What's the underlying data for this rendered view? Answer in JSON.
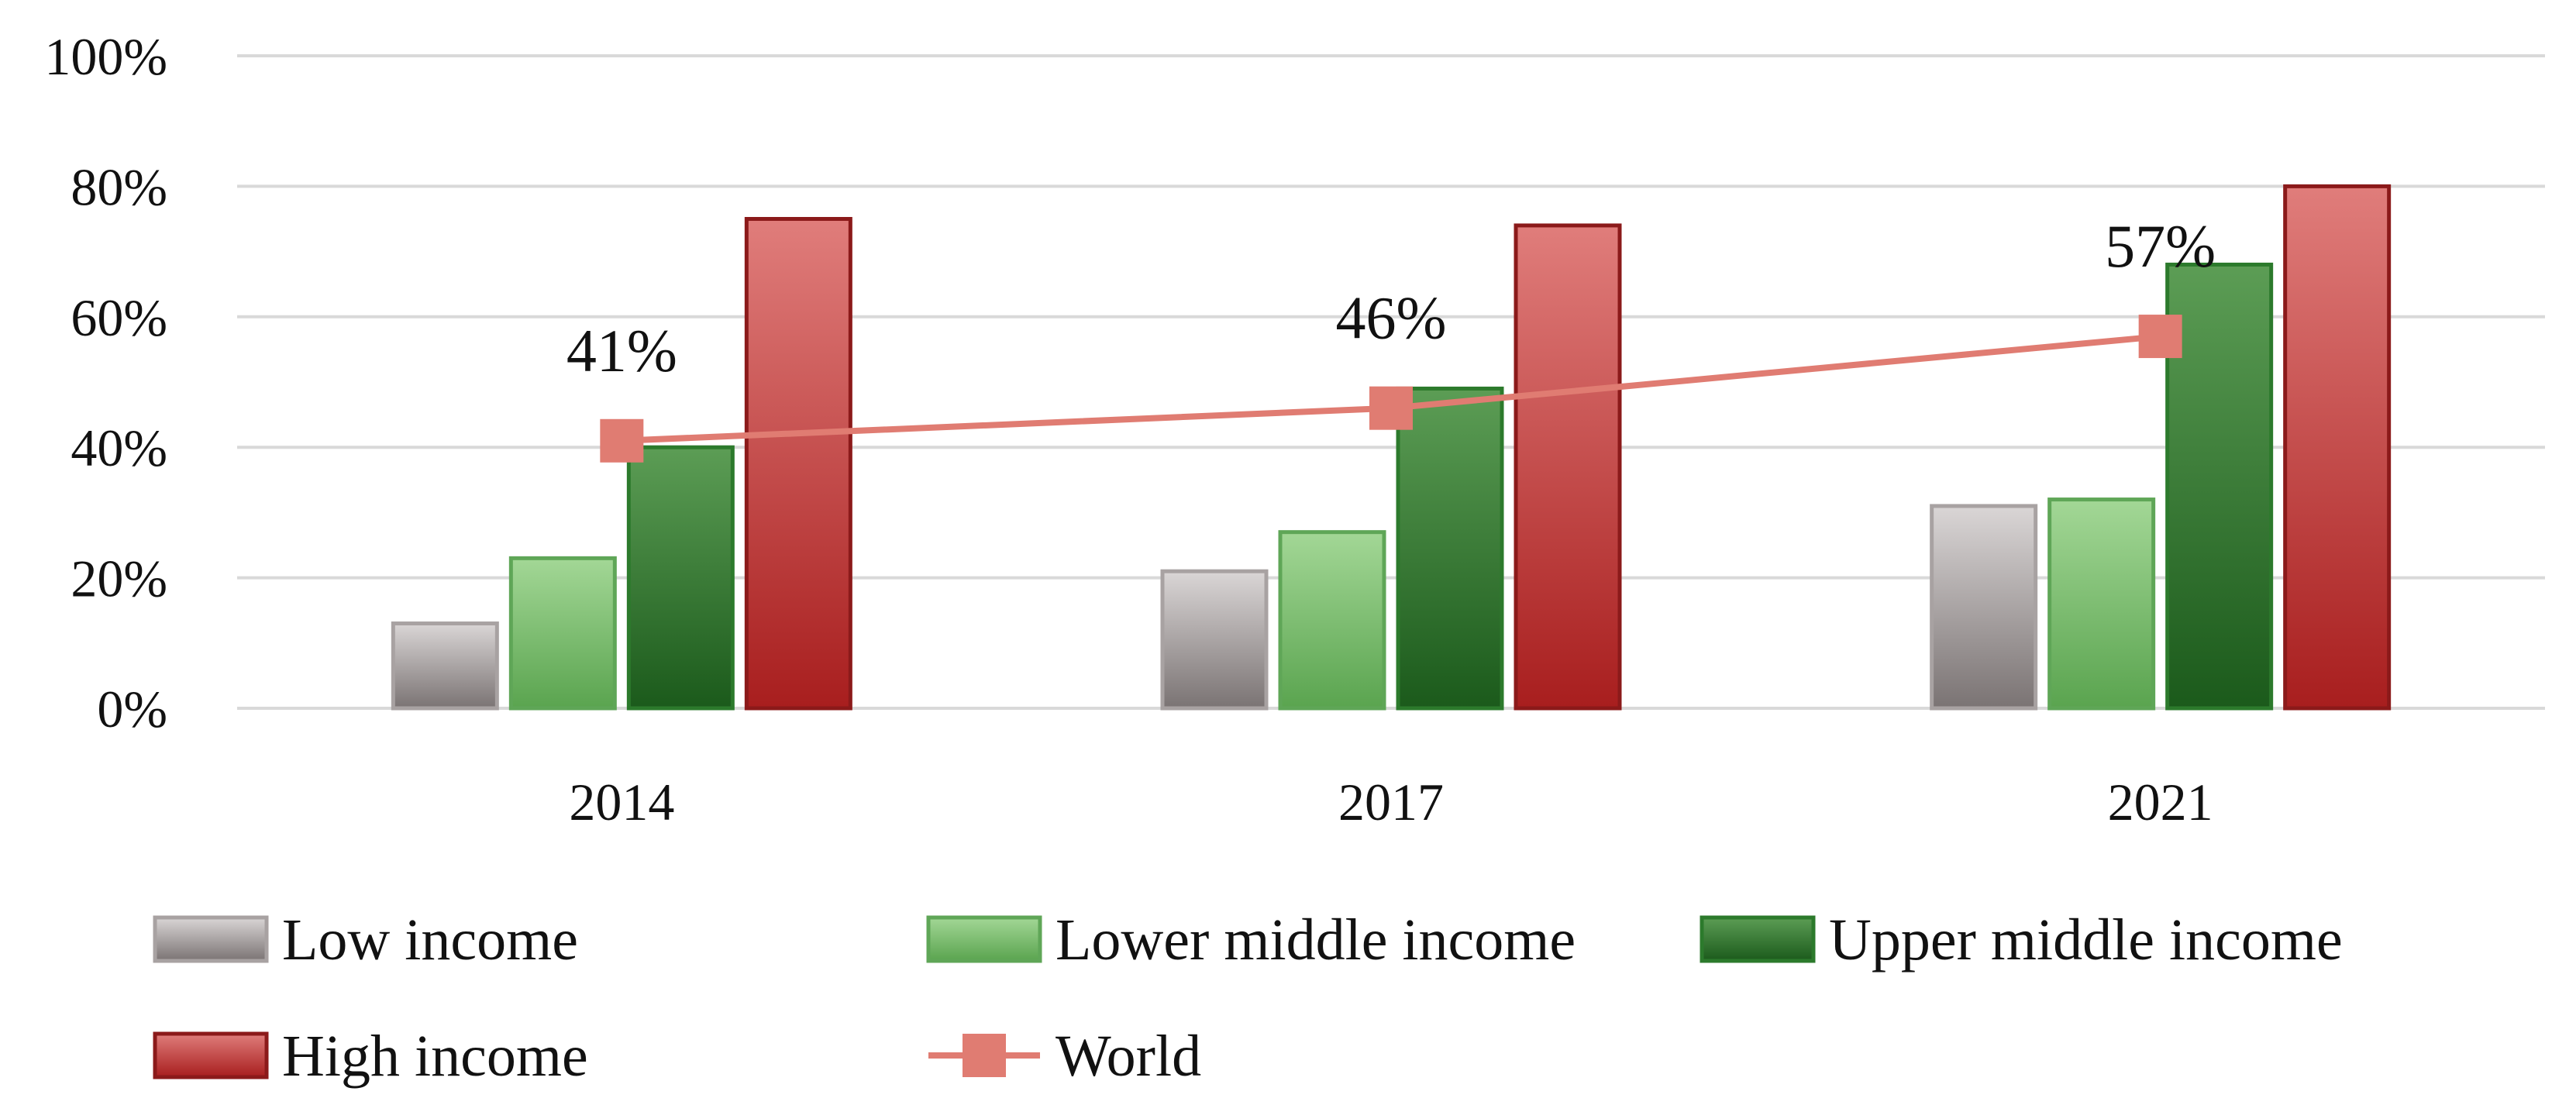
{
  "chart_data": {
    "type": "bar",
    "categories": [
      "2014",
      "2017",
      "2021"
    ],
    "ylim": [
      0,
      100
    ],
    "yticks": [
      "0%",
      "20%",
      "40%",
      "60%",
      "80%",
      "100%"
    ],
    "grid": true,
    "legend_position": "bottom",
    "series": [
      {
        "name": "Low income",
        "type": "bar",
        "values": [
          13,
          21,
          31
        ],
        "color": "#a8a2a2"
      },
      {
        "name": "Lower middle income",
        "type": "bar",
        "values": [
          23,
          27,
          32
        ],
        "color": "#7cbd72"
      },
      {
        "name": "Upper middle income",
        "type": "bar",
        "values": [
          40,
          49,
          68
        ],
        "color": "#3c823a"
      },
      {
        "name": "High income",
        "type": "bar",
        "values": [
          75,
          74,
          80
        ],
        "color": "#c83a3a"
      },
      {
        "name": "World",
        "type": "line",
        "values": [
          41,
          46,
          57
        ],
        "labels": [
          "41%",
          "46%",
          "57%"
        ],
        "color": "#e07c72"
      }
    ]
  }
}
